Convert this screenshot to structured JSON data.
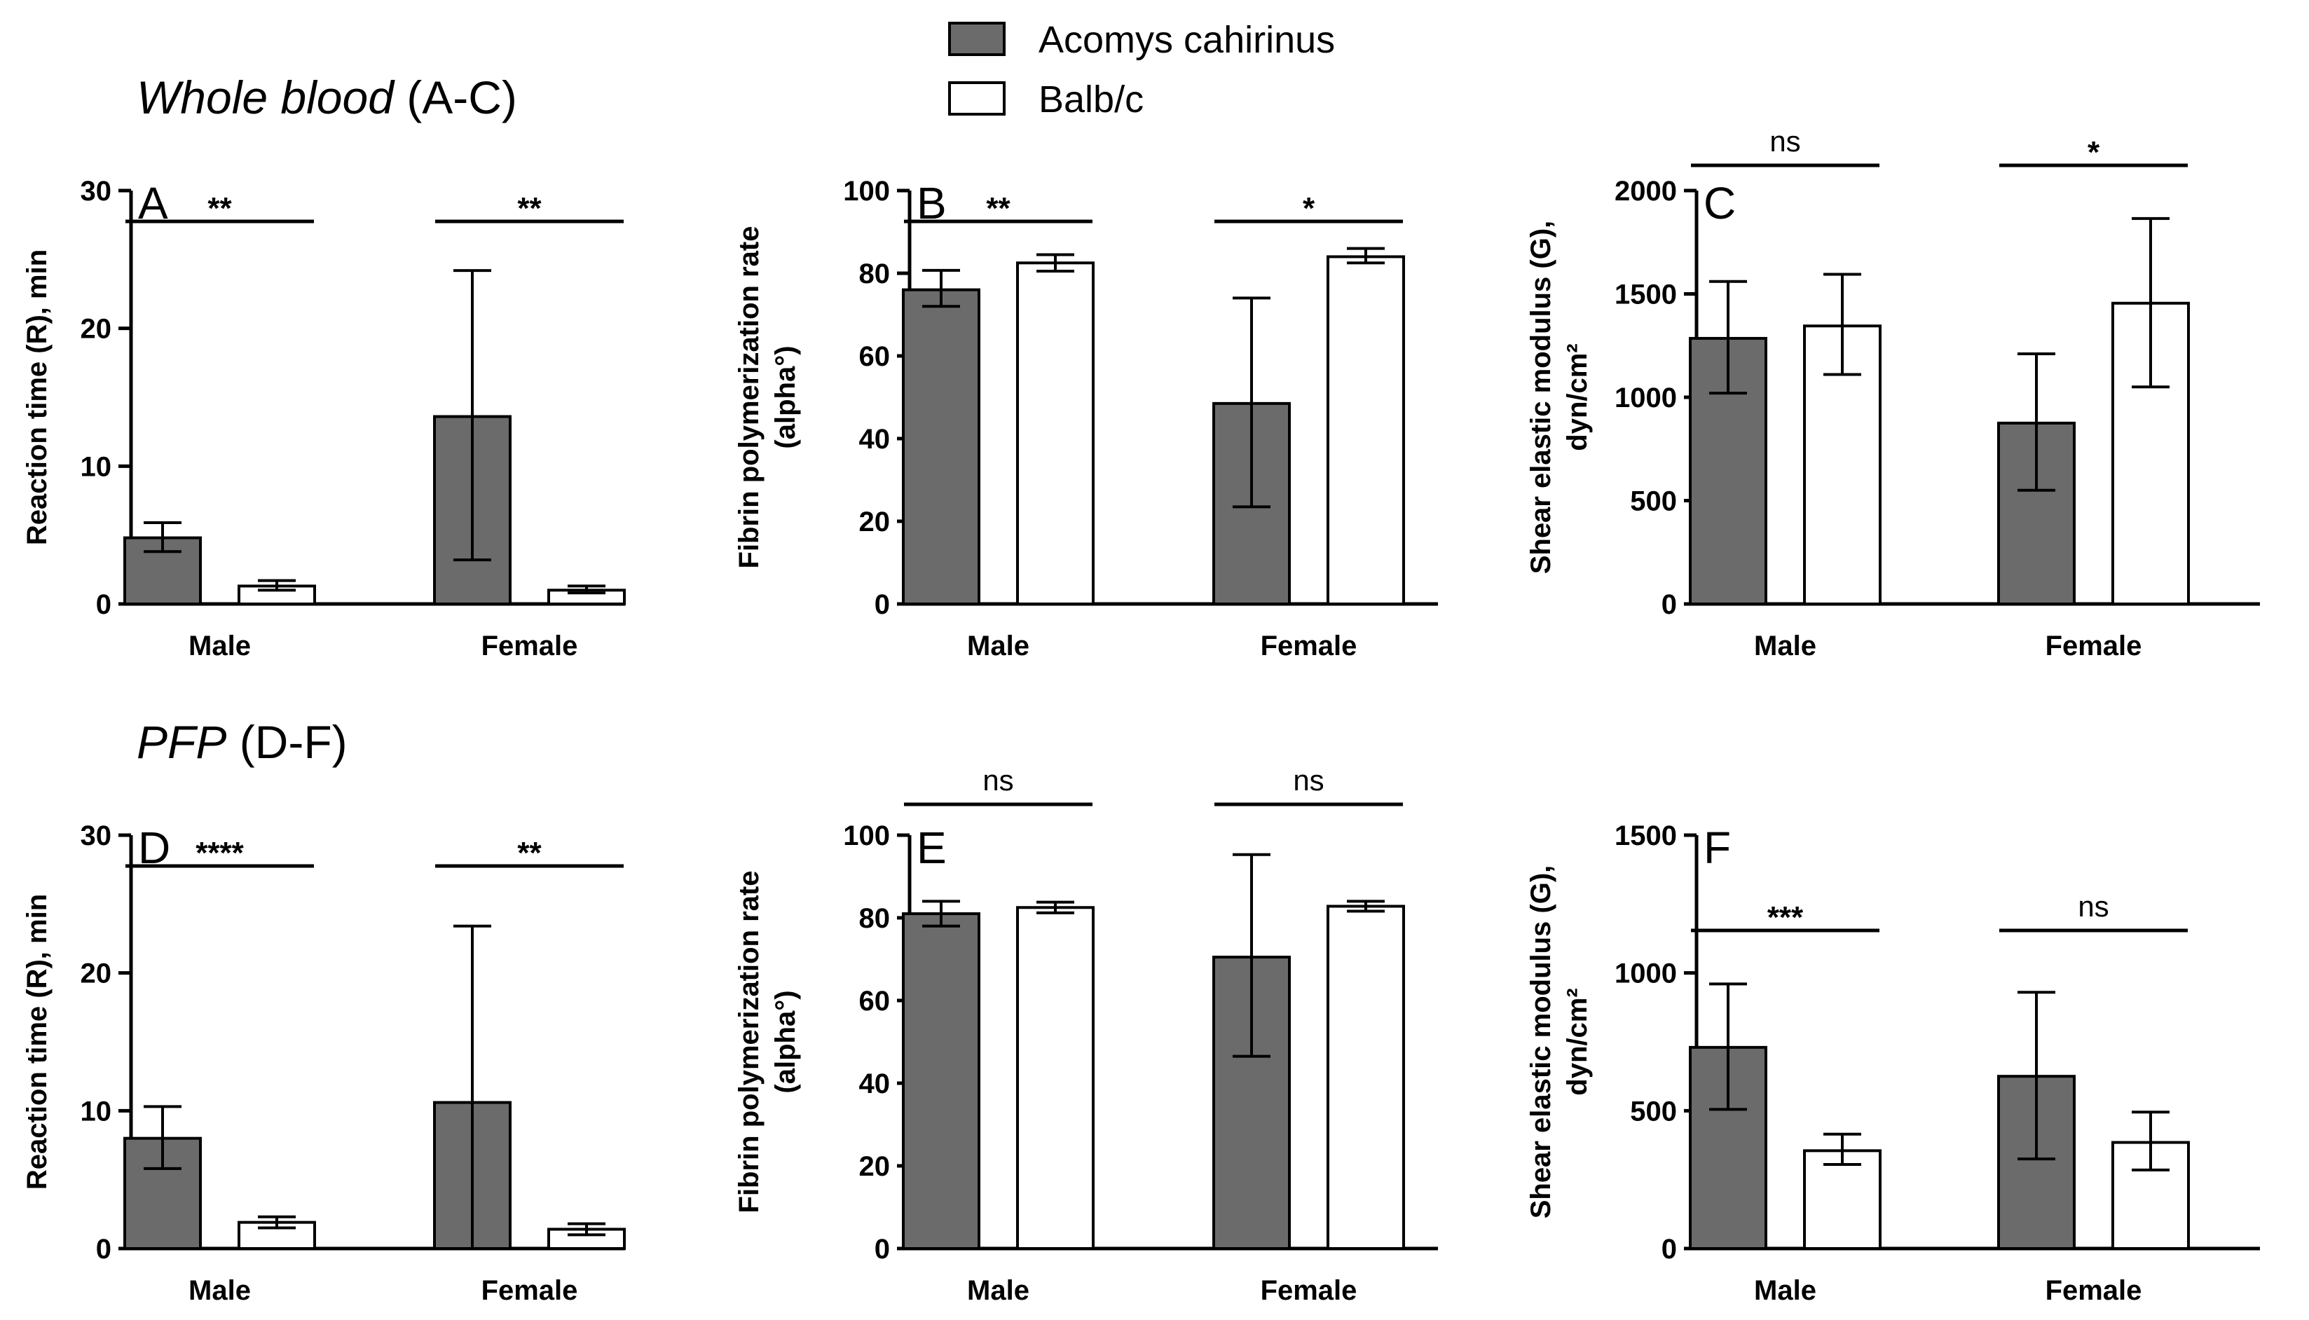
{
  "colors": {
    "acomys": "#6b6b6b",
    "balb": "#ffffff",
    "stroke": "#000000"
  },
  "legend": {
    "series": [
      {
        "name": "Acomys cahirinus",
        "color": "#6b6b6b"
      },
      {
        "name": "Balb/c",
        "color": "#ffffff"
      }
    ]
  },
  "sections": [
    {
      "title_italic": "Whole blood",
      "title_rest": " (A-C)"
    },
    {
      "title_italic": "PFP",
      "title_rest": " (D-F)"
    }
  ],
  "chart_data": [
    {
      "type": "bar",
      "letter": "A",
      "ylabel": "Reaction time (R), min",
      "ylabel2": "",
      "ylim": [
        0,
        30
      ],
      "yticks": [
        0,
        10,
        20,
        30
      ],
      "categories": [
        "Male",
        "Female"
      ],
      "series": [
        {
          "name": "Acomys cahirinus",
          "values": [
            4.8,
            13.6
          ],
          "err_low": [
            3.8,
            3.2
          ],
          "err_high": [
            5.9,
            24.2
          ]
        },
        {
          "name": "Balb/c",
          "values": [
            1.3,
            1.0
          ],
          "err_low": [
            1.0,
            0.8
          ],
          "err_high": [
            1.7,
            1.3
          ]
        }
      ],
      "significance": [
        "**",
        "**"
      ]
    },
    {
      "type": "bar",
      "letter": "B",
      "ylabel": "Fibrin polymerization rate",
      "ylabel2": "(alpha°)",
      "ylim": [
        0,
        100
      ],
      "yticks": [
        0,
        20,
        40,
        60,
        80,
        100
      ],
      "categories": [
        "Male",
        "Female"
      ],
      "series": [
        {
          "name": "Acomys cahirinus",
          "values": [
            76,
            48.5
          ],
          "err_low": [
            72,
            23.5
          ],
          "err_high": [
            80.7,
            74
          ]
        },
        {
          "name": "Balb/c",
          "values": [
            82.5,
            84
          ],
          "err_low": [
            80.5,
            82.5
          ],
          "err_high": [
            84.5,
            86
          ]
        }
      ],
      "significance": [
        "**",
        "*"
      ]
    },
    {
      "type": "bar",
      "letter": "C",
      "ylabel": "Shear elastic modulus (G),",
      "ylabel2": "dyn/cm²",
      "ylim": [
        0,
        2000
      ],
      "yticks": [
        0,
        500,
        1000,
        1500,
        2000
      ],
      "categories": [
        "Male",
        "Female"
      ],
      "series": [
        {
          "name": "Acomys cahirinus",
          "values": [
            1285,
            875
          ],
          "err_low": [
            1020,
            550
          ],
          "err_high": [
            1560,
            1210
          ]
        },
        {
          "name": "Balb/c",
          "values": [
            1345,
            1455
          ],
          "err_low": [
            1110,
            1050
          ],
          "err_high": [
            1595,
            1865
          ]
        }
      ],
      "significance": [
        "ns",
        "*"
      ]
    },
    {
      "type": "bar",
      "letter": "D",
      "ylabel": "Reaction time (R), min",
      "ylabel2": "",
      "ylim": [
        0,
        30
      ],
      "yticks": [
        0,
        10,
        20,
        30
      ],
      "categories": [
        "Male",
        "Female"
      ],
      "series": [
        {
          "name": "Acomys cahirinus",
          "values": [
            8.0,
            10.6
          ],
          "err_low": [
            5.8,
            0
          ],
          "err_high": [
            10.3,
            23.4
          ]
        },
        {
          "name": "Balb/c",
          "values": [
            1.9,
            1.4
          ],
          "err_low": [
            1.5,
            1.0
          ],
          "err_high": [
            2.3,
            1.8
          ]
        }
      ],
      "significance": [
        "****",
        "**"
      ]
    },
    {
      "type": "bar",
      "letter": "E",
      "ylabel": "Fibrin polymerization rate",
      "ylabel2": "(alpha°)",
      "ylim": [
        0,
        100
      ],
      "yticks": [
        0,
        20,
        40,
        60,
        80,
        100
      ],
      "categories": [
        "Male",
        "Female"
      ],
      "series": [
        {
          "name": "Acomys cahirinus",
          "values": [
            81,
            70.5
          ],
          "err_low": [
            78,
            46.5
          ],
          "err_high": [
            84,
            95.3
          ]
        },
        {
          "name": "Balb/c",
          "values": [
            82.5,
            82.8
          ],
          "err_low": [
            81.2,
            81.6
          ],
          "err_high": [
            83.8,
            84
          ]
        }
      ],
      "significance": [
        "ns",
        "ns"
      ]
    },
    {
      "type": "bar",
      "letter": "F",
      "ylabel": "Shear elastic modulus (G),",
      "ylabel2": "dyn/cm²",
      "ylim": [
        0,
        1500
      ],
      "yticks": [
        0,
        500,
        1000,
        1500
      ],
      "categories": [
        "Male",
        "Female"
      ],
      "series": [
        {
          "name": "Acomys cahirinus",
          "values": [
            730,
            625
          ],
          "err_low": [
            505,
            325
          ],
          "err_high": [
            960,
            930
          ]
        },
        {
          "name": "Balb/c",
          "values": [
            355,
            385
          ],
          "err_low": [
            305,
            285
          ],
          "err_high": [
            415,
            495
          ]
        }
      ],
      "significance": [
        "***",
        "ns"
      ]
    }
  ]
}
